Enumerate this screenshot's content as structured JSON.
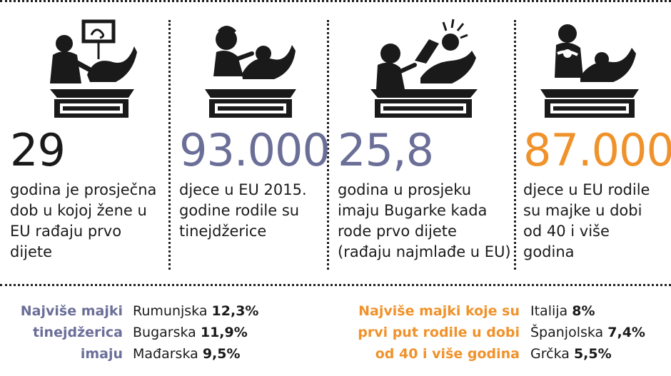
{
  "colors": {
    "black": "#1a1a1a",
    "slate": "#6b6f98",
    "orange": "#f0922b"
  },
  "stats": [
    {
      "icon": "ultrasound-scene-icon",
      "value": "29",
      "color": "#1a1a1a",
      "lines": [
        "godina je prosječna",
        "dob u kojoj žene u",
        "EU rađaju prvo",
        "dijete"
      ]
    },
    {
      "icon": "teen-mother-scene-icon",
      "value": "93.000",
      "color": "#6b6f98",
      "lines": [
        "djece u EU 2015.",
        "godine rodile su",
        "tinejdžerice"
      ]
    },
    {
      "icon": "childbirth-scene-icon",
      "value": "25,8",
      "color": "#6b6f98",
      "lines": [
        "godina u prosjeku",
        "imaju Bugarke kada",
        "rode prvo dijete",
        "(rađaju najmlađe u EU)"
      ]
    },
    {
      "icon": "newborn-scene-icon",
      "value": "87.000",
      "color": "#f0922b",
      "lines": [
        "djece u EU rodile",
        "su majke u dobi",
        "od 40 i više",
        "godina"
      ]
    }
  ],
  "bottom": {
    "left": {
      "label": [
        "Najviše majki",
        "tinejdžerica",
        "imaju"
      ],
      "items": [
        {
          "country": "Rumunjska",
          "value": "12,3%"
        },
        {
          "country": "Bugarska",
          "value": "11,9%"
        },
        {
          "country": "Mađarska",
          "value": "9,5%"
        }
      ]
    },
    "right": {
      "label": [
        "Najviše majki koje su",
        "prvi put rodile u dobi",
        "od 40 i više godina"
      ],
      "items": [
        {
          "country": "Italija",
          "value": "8%"
        },
        {
          "country": "Španjolska",
          "value": "7,4%"
        },
        {
          "country": "Grčka",
          "value": "5,5%"
        }
      ]
    }
  }
}
